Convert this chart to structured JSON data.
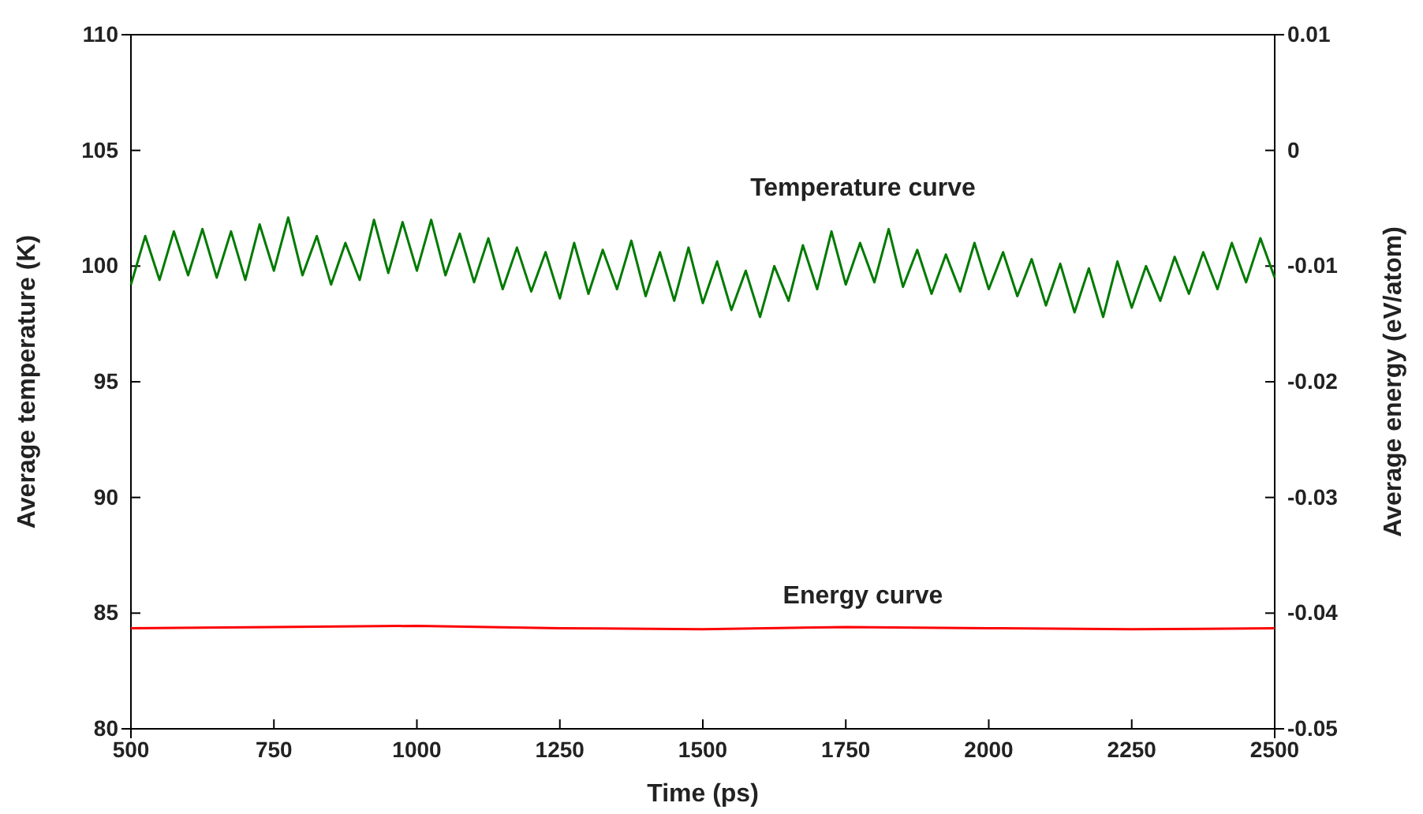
{
  "chart_data": {
    "type": "line",
    "xlabel": "Time (ps)",
    "ylabel": "Average temperature (K)",
    "y2label": "Average energy (eV/atom)",
    "xlim": [
      500,
      2500
    ],
    "xticks": [
      500,
      750,
      1000,
      1250,
      1500,
      1750,
      2000,
      2250,
      2500
    ],
    "ylim": [
      80,
      110
    ],
    "yticks": [
      80,
      85,
      90,
      95,
      100,
      105,
      110
    ],
    "y2lim": [
      -0.05,
      0.01
    ],
    "y2ticks": [
      -0.05,
      -0.04,
      -0.03,
      -0.02,
      -0.01,
      0,
      0.01
    ],
    "grid": false,
    "marker": "none",
    "line_style": "solid",
    "annotations": [
      "Temperature curve",
      "Energy curve"
    ],
    "series": [
      {
        "color": "#007a00",
        "x": [
          500,
          525,
          550,
          575,
          600,
          625,
          650,
          675,
          700,
          725,
          750,
          775,
          800,
          825,
          850,
          875,
          900,
          925,
          950,
          975,
          1000,
          1025,
          1050,
          1075,
          1100,
          1125,
          1150,
          1175,
          1200,
          1225,
          1250,
          1275,
          1300,
          1325,
          1350,
          1375,
          1400,
          1425,
          1450,
          1475,
          1500,
          1525,
          1550,
          1575,
          1600,
          1625,
          1650,
          1675,
          1700,
          1725,
          1750,
          1775,
          1800,
          1825,
          1850,
          1875,
          1900,
          1925,
          1950,
          1975,
          2000,
          2025,
          2050,
          2075,
          2100,
          2125,
          2150,
          2175,
          2200,
          2225,
          2250,
          2275,
          2300,
          2325,
          2350,
          2375,
          2400,
          2425,
          2450,
          2475,
          2500
        ],
        "values": [
          99.2,
          101.3,
          99.4,
          101.5,
          99.6,
          101.6,
          99.5,
          101.5,
          99.4,
          101.8,
          99.8,
          102.1,
          99.6,
          101.3,
          99.2,
          101.0,
          99.4,
          102.0,
          99.7,
          101.9,
          99.8,
          102.0,
          99.6,
          101.4,
          99.3,
          101.2,
          99.0,
          100.8,
          98.9,
          100.6,
          98.6,
          101.0,
          98.8,
          100.7,
          99.0,
          101.1,
          98.7,
          100.6,
          98.5,
          100.8,
          98.4,
          100.2,
          98.1,
          99.8,
          97.8,
          100.0,
          98.5,
          100.9,
          99.0,
          101.5,
          99.2,
          101.0,
          99.3,
          101.6,
          99.1,
          100.7,
          98.8,
          100.5,
          98.9,
          101.0,
          99.0,
          100.6,
          98.7,
          100.3,
          98.3,
          100.1,
          98.0,
          99.9,
          97.8,
          100.2,
          98.2,
          100.0,
          98.5,
          100.4,
          98.8,
          100.6,
          99.0,
          101.0,
          99.3,
          101.2,
          99.5
        ]
      },
      {
        "color": "#ff0000",
        "axis": "y2",
        "x": [
          500,
          750,
          1000,
          1250,
          1500,
          1750,
          2000,
          2250,
          2500
        ],
        "values": [
          -0.0413,
          -0.0412,
          -0.0411,
          -0.0413,
          -0.0414,
          -0.0412,
          -0.0413,
          -0.0414,
          -0.0413
        ]
      }
    ]
  }
}
